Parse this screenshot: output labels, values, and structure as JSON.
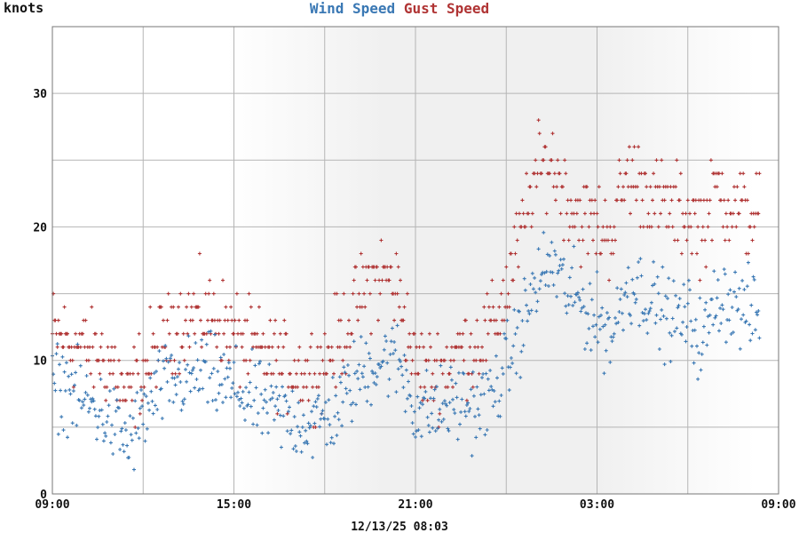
{
  "chart_data": {
    "type": "scatter",
    "ylabel": "knots",
    "ylim": [
      0,
      35
    ],
    "yticks": [
      0,
      10,
      20,
      30
    ],
    "x_hours_range": [
      9,
      33
    ],
    "xtick_labels": [
      "09:00",
      "15:00",
      "21:00",
      "03:00",
      "09:00"
    ],
    "timestamp": "12/13/25 08:03",
    "grid": true,
    "legend_placement": "top-center",
    "night_shading": {
      "from_hour": 15.5,
      "to_hour": 31.5
    },
    "series": [
      {
        "name": "Wind Speed",
        "color": "#3a78b4",
        "hours": [
          9.0,
          9.5,
          10.0,
          10.5,
          11.0,
          11.5,
          12.0,
          12.5,
          13.0,
          13.5,
          14.0,
          14.5,
          15.0,
          15.5,
          16.0,
          16.5,
          17.0,
          17.5,
          18.0,
          18.5,
          19.0,
          19.5,
          20.0,
          20.5,
          21.0,
          21.5,
          22.0,
          22.5,
          23.0,
          23.5,
          24.0,
          24.5,
          25.0,
          25.5,
          26.0,
          26.5,
          27.0,
          27.5,
          28.0,
          28.5,
          29.0,
          29.5,
          30.0,
          30.5,
          31.0,
          31.5,
          32.0,
          32.4
        ],
        "values": [
          8.2,
          8.0,
          7.0,
          6.3,
          5.2,
          3.8,
          5.8,
          7.8,
          8.3,
          8.6,
          9.2,
          8.4,
          8.0,
          7.2,
          6.6,
          6.0,
          5.6,
          5.2,
          5.6,
          6.6,
          8.5,
          9.6,
          10.2,
          9.8,
          6.3,
          6.2,
          6.5,
          7.0,
          6.5,
          7.2,
          9.5,
          12.5,
          15.8,
          17.3,
          15.2,
          14.2,
          13.0,
          12.0,
          15.8,
          15.2,
          14.0,
          13.0,
          13.2,
          11.3,
          15.0,
          14.3,
          13.6,
          13.2
        ]
      },
      {
        "name": "Gust Speed",
        "color": "#b03434",
        "hours": [
          9.0,
          9.5,
          10.0,
          10.5,
          11.0,
          11.5,
          12.0,
          12.5,
          13.0,
          13.5,
          14.0,
          14.5,
          15.0,
          15.5,
          16.0,
          16.5,
          17.0,
          17.5,
          18.0,
          18.5,
          19.0,
          19.5,
          20.0,
          20.5,
          21.0,
          21.5,
          22.0,
          22.5,
          23.0,
          23.5,
          24.0,
          24.5,
          25.0,
          25.5,
          26.0,
          26.5,
          27.0,
          27.5,
          28.0,
          28.5,
          29.0,
          29.5,
          30.0,
          30.5,
          31.0,
          31.5,
          32.0,
          32.4
        ],
        "values": [
          12.0,
          11.5,
          11.0,
          10.5,
          9.5,
          7.0,
          9.5,
          11.0,
          12.5,
          13.0,
          13.5,
          13.0,
          12.0,
          11.0,
          10.5,
          10.0,
          9.5,
          9.0,
          10.0,
          11.5,
          14.0,
          16.0,
          16.5,
          15.0,
          9.5,
          9.0,
          9.5,
          11.0,
          11.0,
          12.5,
          15.0,
          19.5,
          24.0,
          25.0,
          22.0,
          20.5,
          20.0,
          19.5,
          24.0,
          23.0,
          22.0,
          21.0,
          21.0,
          20.0,
          23.0,
          21.5,
          21.0,
          21.0
        ]
      }
    ]
  }
}
